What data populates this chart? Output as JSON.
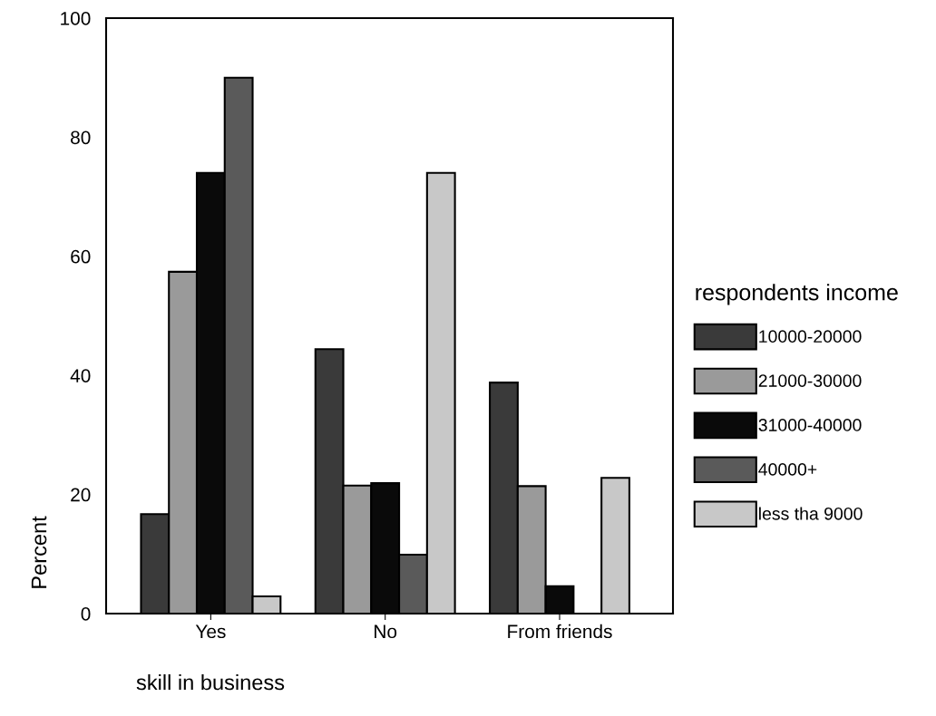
{
  "chart_data": {
    "type": "bar",
    "xlabel": "skill in business",
    "ylabel": "Percent",
    "legend_title": "respondents income",
    "categories": [
      "Yes",
      "No",
      "From friends"
    ],
    "series": [
      {
        "name": "10000-20000",
        "color": "#3a3a3a",
        "values": [
          16.7,
          44.4,
          38.8
        ]
      },
      {
        "name": "21000-30000",
        "color": "#9a9a9a",
        "values": [
          57.4,
          21.5,
          21.4
        ]
      },
      {
        "name": "31000-40000",
        "color": "#0a0a0a",
        "values": [
          74,
          21.9,
          4.6
        ]
      },
      {
        "name": "40000+",
        "color": "#5a5a5a",
        "values": [
          90,
          9.9,
          null
        ]
      },
      {
        "name": "less tha 9000",
        "color": "#c8c8c8",
        "values": [
          2.9,
          74,
          22.8
        ]
      }
    ],
    "ylim": [
      0,
      100
    ],
    "yticks": [
      0,
      20,
      40,
      60,
      80,
      100
    ],
    "grid": false,
    "legend": "right"
  }
}
